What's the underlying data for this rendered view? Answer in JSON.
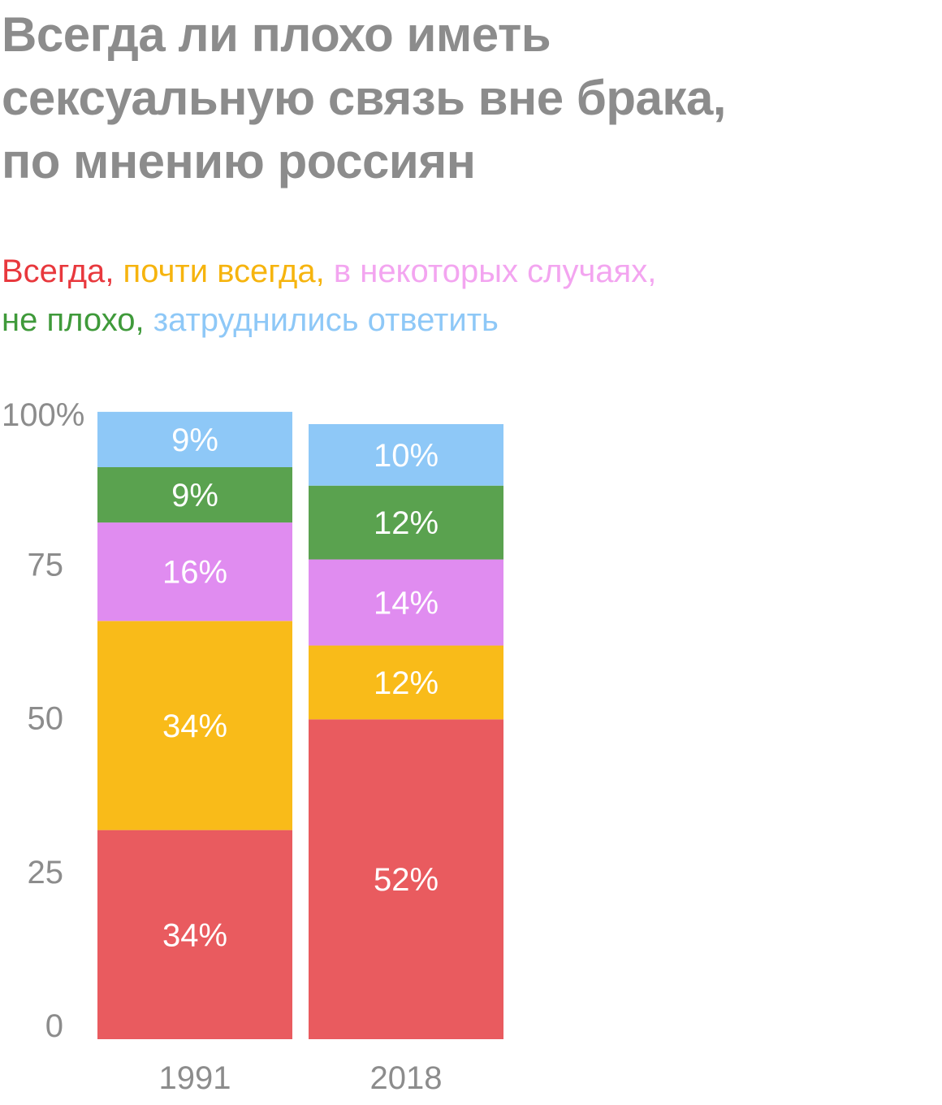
{
  "title_lines": [
    "Всегда ли плохо иметь",
    "сексуальную связь вне брака,",
    "по мнению россиян"
  ],
  "legend": {
    "lines": [
      [
        {
          "text": "Всегда",
          "sep": ", ",
          "color": "#e8383d"
        },
        {
          "text": "почти всегда",
          "sep": ", ",
          "color": "#f6b40e"
        },
        {
          "text": "в некоторых случаях",
          "sep": ",",
          "color": "#f3a5f0"
        }
      ],
      [
        {
          "text": "не плохо",
          "sep": ", ",
          "color": "#3f9a3a"
        },
        {
          "text": "затруднились ответить",
          "sep": "",
          "color": "#8ec8f7"
        }
      ]
    ]
  },
  "chart_data": {
    "type": "bar",
    "stacked": true,
    "categories": [
      "1991",
      "2018"
    ],
    "series": [
      {
        "name": "Всегда",
        "color": "#e95b5f",
        "values": [
          34,
          52
        ],
        "labels": [
          "34%",
          "52%"
        ]
      },
      {
        "name": "почти всегда",
        "color": "#f9bb19",
        "values": [
          34,
          12
        ],
        "labels": [
          "34%",
          "12%"
        ]
      },
      {
        "name": "в некоторых случаях",
        "color": "#e08cf0",
        "values": [
          16,
          14
        ],
        "labels": [
          "16%",
          "14%"
        ]
      },
      {
        "name": "не плохо",
        "color": "#5aa24f",
        "values": [
          9,
          12
        ],
        "labels": [
          "9%",
          "12%"
        ]
      },
      {
        "name": "затруднились ответить",
        "color": "#8ec8f7",
        "values": [
          9,
          10
        ],
        "labels": [
          "9%",
          "10%"
        ]
      }
    ],
    "ylim": [
      0,
      100
    ],
    "yticks": [
      0,
      25,
      50,
      75,
      100
    ],
    "ytick_labels": [
      "0",
      "25",
      "50",
      "75",
      "100%"
    ],
    "grid": false,
    "legend_position": "top",
    "axis_text_color": "#8c8c8c",
    "value_label_color": "#ffffff"
  }
}
